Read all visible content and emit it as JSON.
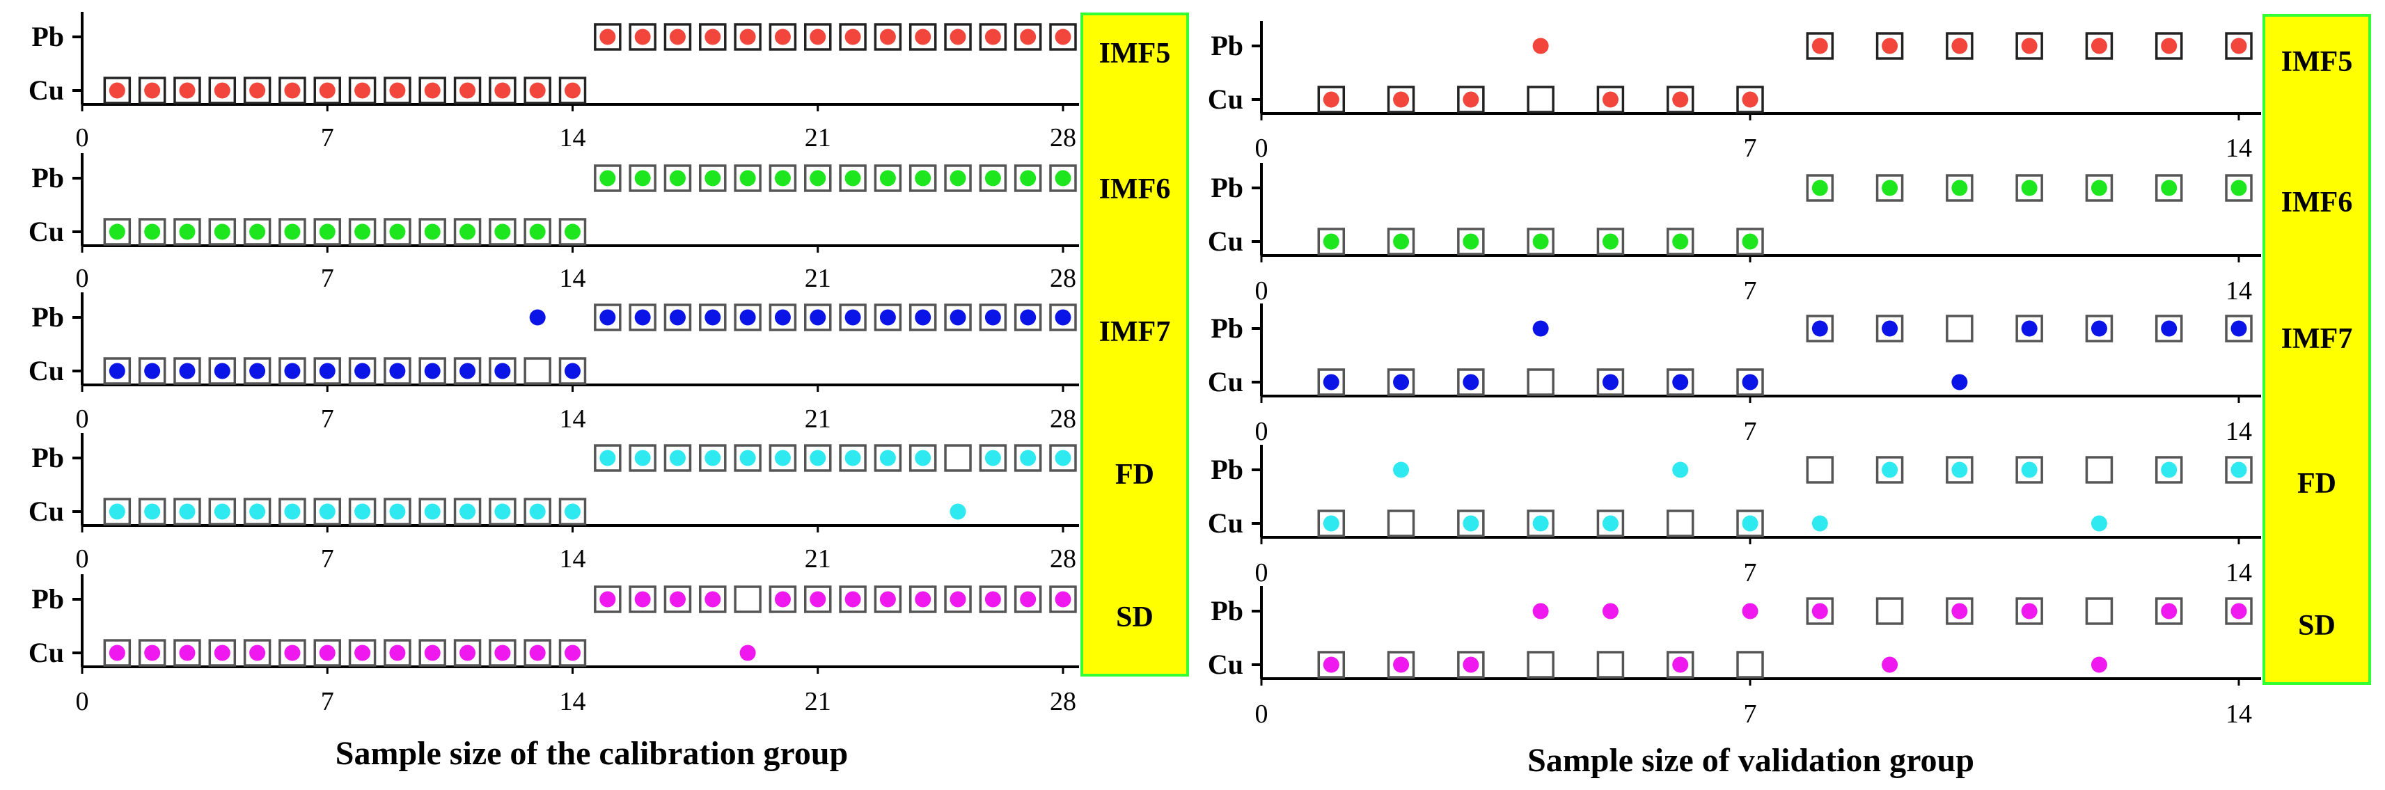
{
  "title": "",
  "colors": {
    "band_fill": "#ffff00",
    "band_border": "#33ff33",
    "IMF5": "#f2453b",
    "IMF6": "#1ee61e",
    "IMF7": "#0a14e6",
    "FD": "#2ee9f0",
    "SD": "#ef19ef"
  },
  "chart_data": [
    {
      "type": "scatter",
      "id": "calibration",
      "xlabel": "Sample size of the calibration group",
      "xlim": [
        0,
        28
      ],
      "xticks": [
        "0",
        "7",
        "14",
        "21",
        "28"
      ],
      "categories": [
        "Cu",
        "Pb"
      ],
      "legend_note": "filled circle = predicted class; square = true class",
      "rows": [
        {
          "label": "IMF5",
          "actual": {
            "Cu": [
              1,
              2,
              3,
              4,
              5,
              6,
              7,
              8,
              9,
              10,
              11,
              12,
              13,
              14
            ],
            "Pb": [
              15,
              16,
              17,
              18,
              19,
              20,
              21,
              22,
              23,
              24,
              25,
              26,
              27,
              28
            ]
          },
          "predicted": {
            "Cu": [
              1,
              2,
              3,
              4,
              5,
              6,
              7,
              8,
              9,
              10,
              11,
              12,
              13,
              14
            ],
            "Pb": [
              15,
              16,
              17,
              18,
              19,
              20,
              21,
              22,
              23,
              24,
              25,
              26,
              27,
              28
            ]
          }
        },
        {
          "label": "IMF6",
          "actual": {
            "Cu": [
              1,
              2,
              3,
              4,
              5,
              6,
              7,
              8,
              9,
              10,
              11,
              12,
              13,
              14
            ],
            "Pb": [
              15,
              16,
              17,
              18,
              19,
              20,
              21,
              22,
              23,
              24,
              25,
              26,
              27,
              28
            ]
          },
          "predicted": {
            "Cu": [
              1,
              2,
              3,
              4,
              5,
              6,
              7,
              8,
              9,
              10,
              11,
              12,
              13,
              14
            ],
            "Pb": [
              15,
              16,
              17,
              18,
              19,
              20,
              21,
              22,
              23,
              24,
              25,
              26,
              27,
              28
            ]
          }
        },
        {
          "label": "IMF7",
          "actual": {
            "Cu": [
              1,
              2,
              3,
              4,
              5,
              6,
              7,
              8,
              9,
              10,
              11,
              12,
              13,
              14
            ],
            "Pb": [
              15,
              16,
              17,
              18,
              19,
              20,
              21,
              22,
              23,
              24,
              25,
              26,
              27,
              28
            ]
          },
          "predicted": {
            "Cu": [
              1,
              2,
              3,
              4,
              5,
              6,
              7,
              8,
              9,
              10,
              11,
              12,
              14
            ],
            "Pb": [
              13,
              15,
              16,
              17,
              18,
              19,
              20,
              21,
              22,
              23,
              24,
              25,
              26,
              27,
              28
            ]
          }
        },
        {
          "label": "FD",
          "actual": {
            "Cu": [
              1,
              2,
              3,
              4,
              5,
              6,
              7,
              8,
              9,
              10,
              11,
              12,
              13,
              14
            ],
            "Pb": [
              15,
              16,
              17,
              18,
              19,
              20,
              21,
              22,
              23,
              24,
              25,
              26,
              27,
              28
            ]
          },
          "predicted": {
            "Cu": [
              1,
              2,
              3,
              4,
              5,
              6,
              7,
              8,
              9,
              10,
              11,
              12,
              13,
              14,
              25
            ],
            "Pb": [
              15,
              16,
              17,
              18,
              19,
              20,
              21,
              22,
              23,
              24,
              26,
              27,
              28
            ]
          }
        },
        {
          "label": "SD",
          "actual": {
            "Cu": [
              1,
              2,
              3,
              4,
              5,
              6,
              7,
              8,
              9,
              10,
              11,
              12,
              13,
              14
            ],
            "Pb": [
              15,
              16,
              17,
              18,
              19,
              20,
              21,
              22,
              23,
              24,
              25,
              26,
              27,
              28
            ]
          },
          "predicted": {
            "Cu": [
              1,
              2,
              3,
              4,
              5,
              6,
              7,
              8,
              9,
              10,
              11,
              12,
              13,
              14,
              19
            ],
            "Pb": [
              15,
              16,
              17,
              18,
              20,
              21,
              22,
              23,
              24,
              25,
              26,
              27,
              28
            ]
          }
        }
      ]
    },
    {
      "type": "scatter",
      "id": "validation",
      "xlabel": "Sample size of validation group",
      "xlim": [
        0,
        14
      ],
      "xticks": [
        "0",
        "7",
        "14"
      ],
      "categories": [
        "Cu",
        "Pb"
      ],
      "legend_note": "filled circle = predicted class; square = true class",
      "rows": [
        {
          "label": "IMF5",
          "actual": {
            "Cu": [
              1,
              2,
              3,
              4,
              5,
              6,
              7
            ],
            "Pb": [
              8,
              9,
              10,
              11,
              12,
              13,
              14
            ]
          },
          "predicted": {
            "Cu": [
              1,
              2,
              3,
              5,
              6,
              7
            ],
            "Pb": [
              4,
              8,
              9,
              10,
              11,
              12,
              13,
              14
            ]
          }
        },
        {
          "label": "IMF6",
          "actual": {
            "Cu": [
              1,
              2,
              3,
              4,
              5,
              6,
              7
            ],
            "Pb": [
              8,
              9,
              10,
              11,
              12,
              13,
              14
            ]
          },
          "predicted": {
            "Cu": [
              1,
              2,
              3,
              4,
              5,
              6,
              7
            ],
            "Pb": [
              8,
              9,
              10,
              11,
              12,
              13,
              14
            ]
          }
        },
        {
          "label": "IMF7",
          "actual": {
            "Cu": [
              1,
              2,
              3,
              4,
              5,
              6,
              7
            ],
            "Pb": [
              8,
              9,
              10,
              11,
              12,
              13,
              14
            ]
          },
          "predicted": {
            "Cu": [
              1,
              2,
              3,
              5,
              6,
              7,
              10
            ],
            "Pb": [
              4,
              8,
              9,
              11,
              12,
              13,
              14
            ]
          }
        },
        {
          "label": "FD",
          "actual": {
            "Cu": [
              1,
              2,
              3,
              4,
              5,
              6,
              7
            ],
            "Pb": [
              8,
              9,
              10,
              11,
              12,
              13,
              14
            ]
          },
          "predicted": {
            "Cu": [
              1,
              3,
              4,
              5,
              7,
              8,
              12
            ],
            "Pb": [
              2,
              6,
              9,
              10,
              11,
              13,
              14
            ]
          }
        },
        {
          "label": "SD",
          "actual": {
            "Cu": [
              1,
              2,
              3,
              4,
              5,
              6,
              7
            ],
            "Pb": [
              8,
              9,
              10,
              11,
              12,
              13,
              14
            ]
          },
          "predicted": {
            "Cu": [
              1,
              2,
              3,
              6,
              9,
              12
            ],
            "Pb": [
              4,
              5,
              7,
              8,
              10,
              11,
              13,
              14
            ]
          }
        }
      ]
    }
  ]
}
